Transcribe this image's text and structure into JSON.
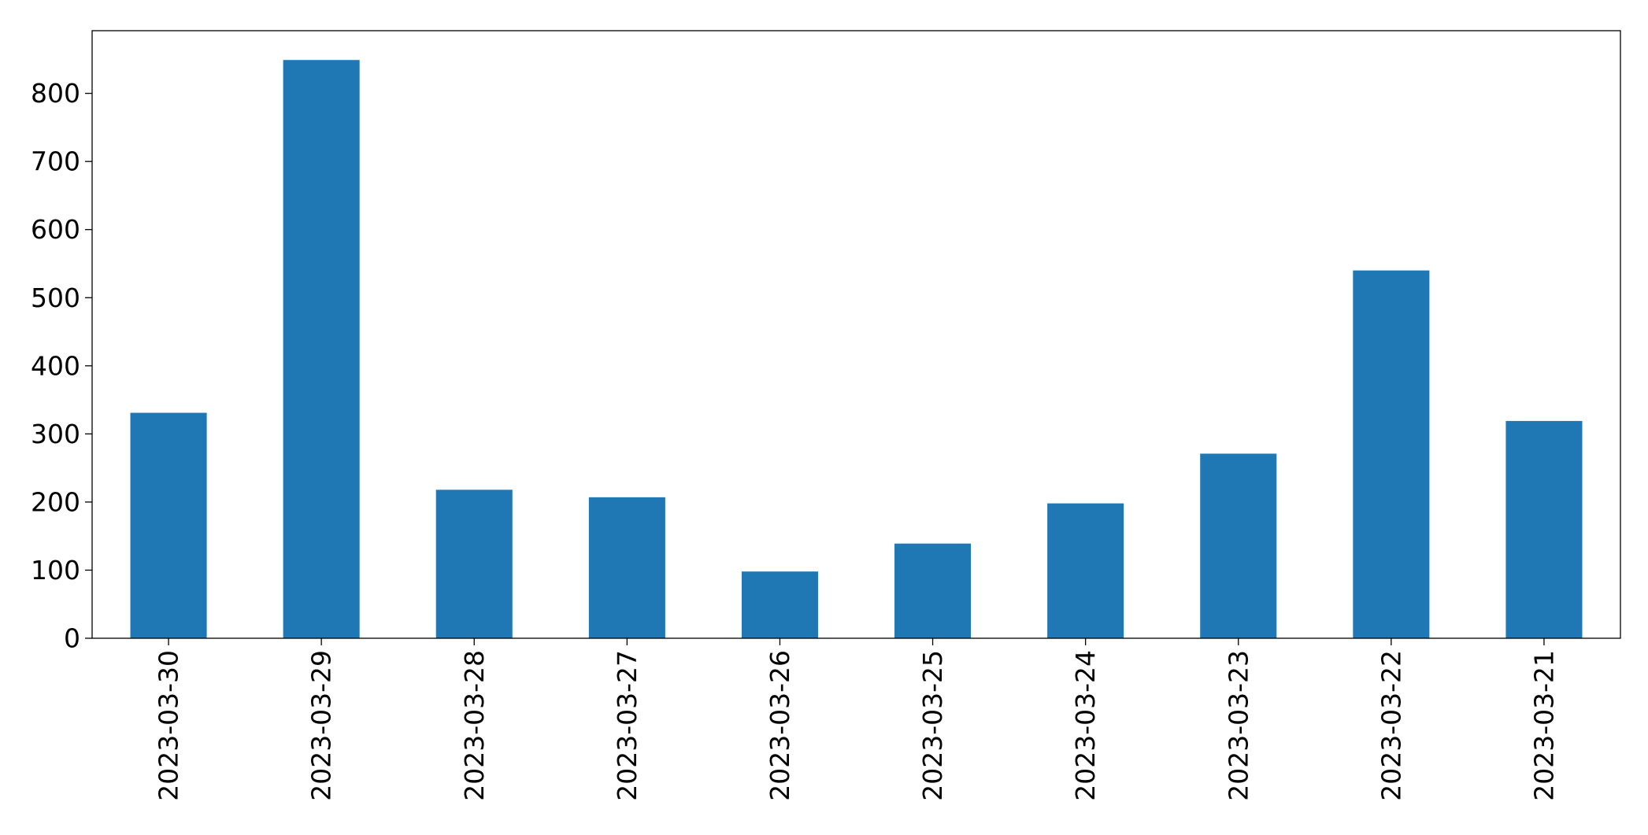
{
  "chart_data": {
    "type": "bar",
    "title": "",
    "xlabel": "",
    "ylabel": "",
    "categories": [
      "2023-03-30",
      "2023-03-29",
      "2023-03-28",
      "2023-03-27",
      "2023-03-26",
      "2023-03-25",
      "2023-03-24",
      "2023-03-23",
      "2023-03-22",
      "2023-03-21"
    ],
    "values": [
      331,
      849,
      218,
      207,
      98,
      139,
      198,
      271,
      540,
      319
    ],
    "ylim": [
      0,
      892
    ],
    "yticks": [
      0,
      100,
      200,
      300,
      400,
      500,
      600,
      700,
      800
    ],
    "grid": false,
    "legend": "none",
    "bar_color": "#1f77b4",
    "x_tick_rotation": "vertical"
  }
}
